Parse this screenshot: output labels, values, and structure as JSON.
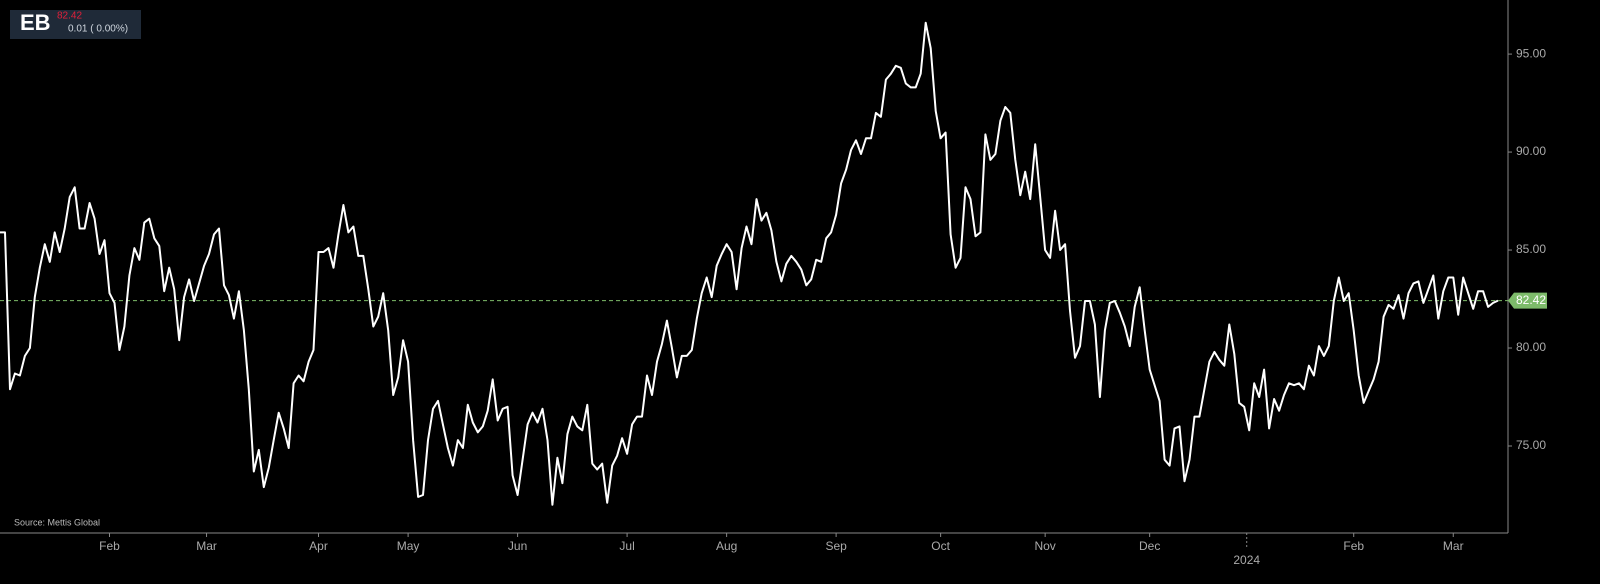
{
  "chart_data": {
    "type": "line",
    "ticker": {
      "symbol": "EB",
      "price": "82.42",
      "change": "0.01 ( 0.00%)"
    },
    "source": "Source: Mettis Global",
    "color": "#ffffff",
    "values": [
      85.9,
      85.9,
      77.9,
      78.7,
      78.6,
      79.6,
      80.0,
      82.6,
      84.1,
      85.3,
      84.4,
      85.9,
      84.9,
      86.1,
      87.7,
      88.2,
      86.1,
      86.1,
      87.4,
      86.6,
      84.8,
      85.5,
      82.8,
      82.3,
      79.9,
      81.1,
      83.7,
      85.1,
      84.5,
      86.4,
      86.6,
      85.6,
      85.2,
      82.9,
      84.1,
      83.0,
      80.4,
      82.6,
      83.5,
      82.4,
      83.3,
      84.2,
      84.8,
      85.8,
      86.1,
      83.2,
      82.7,
      81.5,
      82.9,
      80.9,
      77.9,
      73.7,
      74.8,
      72.9,
      73.9,
      75.3,
      76.7,
      75.9,
      74.9,
      78.2,
      78.6,
      78.3,
      79.3,
      79.9,
      84.9,
      84.9,
      85.1,
      84.1,
      85.8,
      87.3,
      85.9,
      86.2,
      84.7,
      84.7,
      83.0,
      81.1,
      81.6,
      82.8,
      80.9,
      77.6,
      78.5,
      80.4,
      79.3,
      75.3,
      72.4,
      72.5,
      75.3,
      76.9,
      77.3,
      76.1,
      74.9,
      74.0,
      75.3,
      74.9,
      77.1,
      76.2,
      75.7,
      76.0,
      76.8,
      78.4,
      76.3,
      76.9,
      77.0,
      73.5,
      72.5,
      74.3,
      76.1,
      76.7,
      76.2,
      76.9,
      75.3,
      72.0,
      74.4,
      73.1,
      75.6,
      76.5,
      76.0,
      75.8,
      77.1,
      74.1,
      73.8,
      74.1,
      72.1,
      74.0,
      74.5,
      75.4,
      74.6,
      76.1,
      76.5,
      76.5,
      78.6,
      77.6,
      79.3,
      80.2,
      81.4,
      80.0,
      78.5,
      79.6,
      79.6,
      79.9,
      81.5,
      82.8,
      83.6,
      82.6,
      84.2,
      84.8,
      85.3,
      84.9,
      83.0,
      85.1,
      86.2,
      85.3,
      87.6,
      86.5,
      86.9,
      86.0,
      84.4,
      83.4,
      84.3,
      84.7,
      84.4,
      84.0,
      83.2,
      83.5,
      84.5,
      84.4,
      85.6,
      85.9,
      86.8,
      88.4,
      89.1,
      90.1,
      90.6,
      89.9,
      90.7,
      90.7,
      92.0,
      91.8,
      93.7,
      94.0,
      94.4,
      94.3,
      93.5,
      93.3,
      93.3,
      94.0,
      96.6,
      95.3,
      92.1,
      90.7,
      91.0,
      85.8,
      84.1,
      84.6,
      88.2,
      87.6,
      85.7,
      85.9,
      90.9,
      89.6,
      89.9,
      91.6,
      92.3,
      92.0,
      89.6,
      87.8,
      89.0,
      87.6,
      90.4,
      87.7,
      85.0,
      84.6,
      87.0,
      85.0,
      85.3,
      81.9,
      79.5,
      80.1,
      82.4,
      82.4,
      81.2,
      77.5,
      80.9,
      82.3,
      82.4,
      81.8,
      81.1,
      80.1,
      82.1,
      83.1,
      80.9,
      78.9,
      78.1,
      77.3,
      74.3,
      74.0,
      75.9,
      76.0,
      73.2,
      74.3,
      76.5,
      76.5,
      77.9,
      79.3,
      79.8,
      79.4,
      79.1,
      81.2,
      79.7,
      77.2,
      77.0,
      75.8,
      78.2,
      77.5,
      78.9,
      75.9,
      77.4,
      76.8,
      77.6,
      78.2,
      78.1,
      78.2,
      77.9,
      79.1,
      78.6,
      80.1,
      79.6,
      80.1,
      82.4,
      83.6,
      82.4,
      82.8,
      80.9,
      78.6,
      77.2,
      77.8,
      78.4,
      79.3,
      81.6,
      82.2,
      82.0,
      82.7,
      81.5,
      82.8,
      83.3,
      83.4,
      82.3,
      83.0,
      83.7,
      81.5,
      82.9,
      83.6,
      83.6,
      81.7,
      83.6,
      82.8,
      82.0,
      82.9,
      82.9,
      82.1,
      82.3,
      82.42
    ],
    "xlim": [
      0,
      303
    ],
    "xticks": [
      {
        "value": 22,
        "label": "Feb"
      },
      {
        "value": 41.5,
        "label": "Mar"
      },
      {
        "value": 64,
        "label": "Apr"
      },
      {
        "value": 82,
        "label": "May"
      },
      {
        "value": 104,
        "label": "Jun"
      },
      {
        "value": 126,
        "label": "Jul"
      },
      {
        "value": 146,
        "label": "Aug"
      },
      {
        "value": 168,
        "label": "Sep"
      },
      {
        "value": 189,
        "label": "Oct"
      },
      {
        "value": 210,
        "label": "Nov"
      },
      {
        "value": 231,
        "label": "Dec"
      },
      {
        "value": 272,
        "label": "Feb"
      },
      {
        "value": 292,
        "label": "Mar"
      }
    ],
    "year_ticks": [
      {
        "value": 250.5,
        "label": "2024"
      }
    ],
    "ylim": [
      70.56,
      97.76
    ],
    "yticks": [
      {
        "value": 75,
        "label": "75.00"
      },
      {
        "value": 80,
        "label": "80.00"
      },
      {
        "value": 85,
        "label": "85.00"
      },
      {
        "value": 90,
        "label": "90.00"
      },
      {
        "value": 95,
        "label": "95.00"
      }
    ],
    "reference_line": {
      "value": 82.42,
      "label": "82.42",
      "color": "#7dbb6a"
    }
  }
}
